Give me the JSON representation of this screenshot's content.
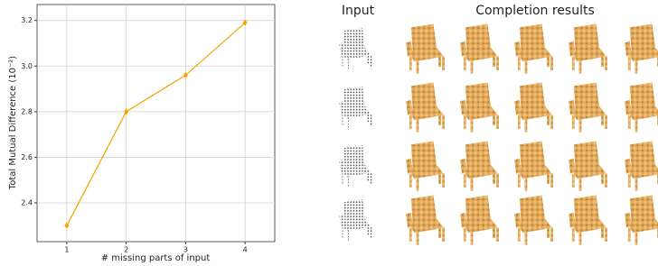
{
  "chart_data": {
    "type": "line",
    "x_label": "# missing parts of input",
    "y_label": "Total Mutual Difference (10⁻²)",
    "x": [
      1,
      2,
      3,
      4
    ],
    "series": [
      {
        "color": "#f5a300",
        "values": [
          2.3,
          2.8,
          2.96,
          3.19
        ]
      }
    ],
    "xlim": [
      0.5,
      4.5
    ],
    "xticks": [
      1,
      2,
      3,
      4
    ],
    "ylim": [
      2.23,
      3.27
    ],
    "yticks": [
      2.4,
      2.6,
      2.8,
      {
        "value": 3,
        "label": "3.0"
      },
      3.2
    ],
    "grid": true
  },
  "panel": {
    "input_label": "Input",
    "results_label": "Completion results"
  }
}
